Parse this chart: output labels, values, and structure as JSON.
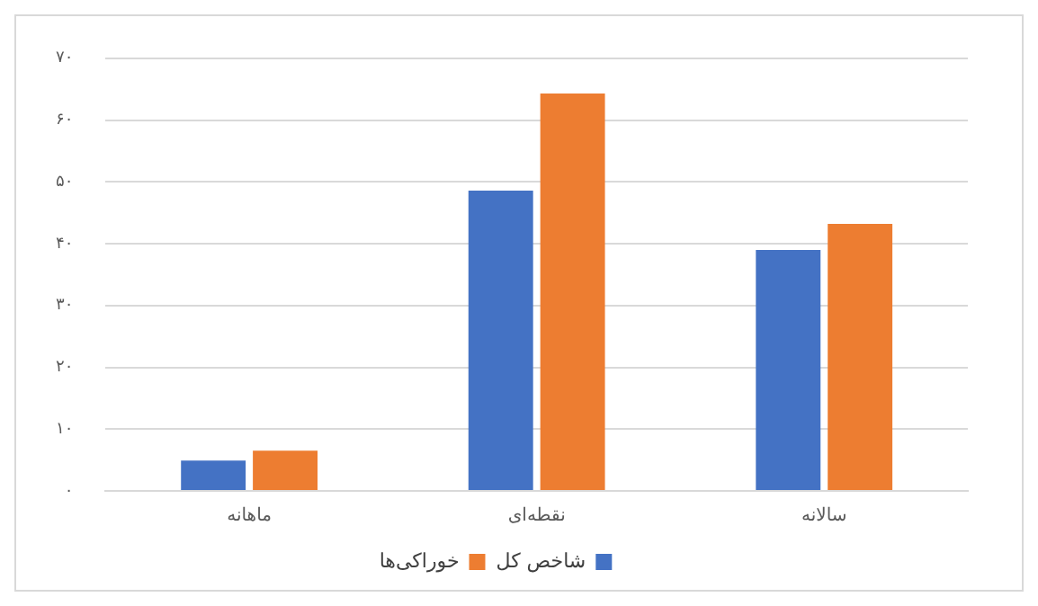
{
  "chart_data": {
    "type": "bar",
    "categories": [
      "ماهانه",
      "نقطه‌ای",
      "سالانه"
    ],
    "series": [
      {
        "name": "شاخص کل",
        "color": "#4472c4",
        "values": [
          4.9,
          48.6,
          39.0
        ]
      },
      {
        "name": "خوراکی‌ها",
        "color": "#ed7d31",
        "values": [
          6.5,
          64.3,
          43.2
        ]
      }
    ],
    "ylim": [
      0,
      70
    ],
    "yticks": [
      {
        "value": 0,
        "label": "۰"
      },
      {
        "value": 10,
        "label": "۱۰"
      },
      {
        "value": 20,
        "label": "۲۰"
      },
      {
        "value": 30,
        "label": "۳۰"
      },
      {
        "value": 40,
        "label": "۴۰"
      },
      {
        "value": 50,
        "label": "۵۰"
      },
      {
        "value": 60,
        "label": "۶۰"
      },
      {
        "value": 70,
        "label": "۷۰"
      }
    ],
    "grid": "y",
    "legend": "bottom"
  }
}
